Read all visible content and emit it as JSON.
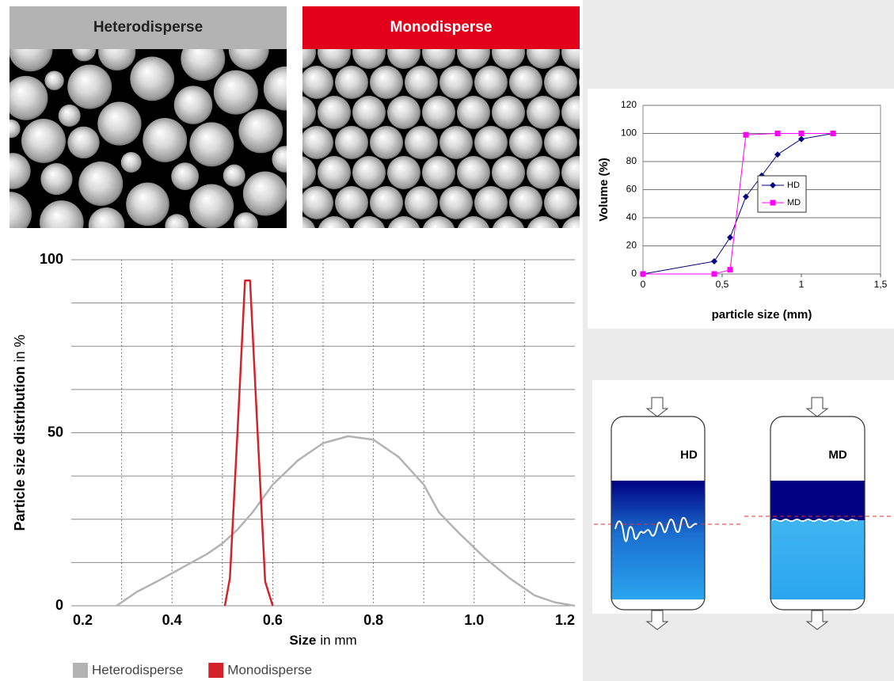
{
  "panels": {
    "heterodisperse_header": "Heterodisperse",
    "monodisperse_header": "Monodisperse"
  },
  "chart_data": [
    {
      "type": "line",
      "ylabel": "Particle size distribution",
      "ylabel_unit": "in %",
      "xlabel": "Size",
      "xlabel_unit": "in mm",
      "xlim": [
        0.2,
        1.2
      ],
      "ylim": [
        0,
        100
      ],
      "xticks": [
        0.2,
        0.4,
        0.6,
        0.8,
        {
          "value": 1,
          "label": "1.0"
        },
        1.2
      ],
      "yticks": [
        0,
        50,
        100
      ],
      "xgrid": [
        0.3,
        0.4,
        0.5,
        0.6,
        0.7,
        0.8,
        0.9,
        1,
        1.1
      ],
      "ygrid": [
        12.5,
        25,
        37.5,
        62.5,
        75,
        87.5
      ],
      "legend": "bottom",
      "series": [
        {
          "name": "Heterodisperse",
          "color": "#b3b3b3",
          "x": [
            0.29,
            0.33,
            0.37,
            0.42,
            0.47,
            0.5,
            0.53,
            0.56,
            0.6,
            0.65,
            0.7,
            0.75,
            0.8,
            0.85,
            0.9,
            0.93,
            0.97,
            1.02,
            1.07,
            1.12,
            1.16,
            1.2
          ],
          "values": [
            0,
            4,
            7,
            11,
            15,
            18,
            22,
            27,
            35,
            42,
            47,
            49,
            48,
            43,
            35,
            27,
            21,
            14,
            8,
            3,
            1,
            0
          ]
        },
        {
          "name": "Monodisperse",
          "color": "#d2232a",
          "x": [
            0.505,
            0.515,
            0.53,
            0.545,
            0.555,
            0.57,
            0.585,
            0.6
          ],
          "values": [
            0,
            8,
            50,
            94,
            94,
            50,
            7,
            0
          ]
        }
      ]
    },
    {
      "type": "line",
      "ylabel": "Volume (%)",
      "xlabel": "particle size (mm)",
      "xlim": [
        0,
        1.5
      ],
      "ylim": [
        0,
        120
      ],
      "xticks": [
        0,
        {
          "value": 0.5,
          "label": "0,5"
        },
        1,
        {
          "value": 1.5,
          "label": "1,5"
        }
      ],
      "yticks": [
        0,
        20,
        40,
        60,
        80,
        100,
        120
      ],
      "grid": true,
      "legend": "center",
      "series": [
        {
          "name": "HD",
          "color": "#000080",
          "marker": "diamond",
          "x": [
            0,
            0.45,
            0.55,
            0.65,
            0.75,
            0.85,
            1,
            1.2
          ],
          "values": [
            0,
            9,
            26,
            55,
            70,
            85,
            96,
            100
          ]
        },
        {
          "name": "MD",
          "color": "#ff00ff",
          "marker": "square",
          "x": [
            0,
            0.45,
            0.55,
            0.65,
            0.85,
            1,
            1.2
          ],
          "values": [
            0,
            0,
            3,
            99,
            100,
            100,
            100
          ]
        }
      ]
    }
  ],
  "diagram": {
    "columns": [
      {
        "label": "HD"
      },
      {
        "label": "MD"
      }
    ]
  }
}
